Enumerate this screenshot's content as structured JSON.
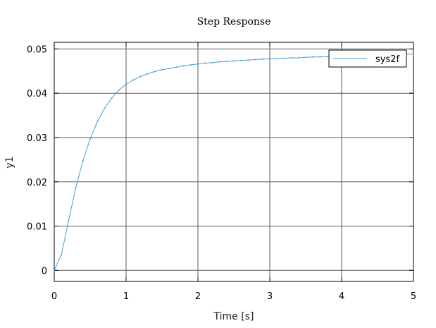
{
  "chart_data": {
    "type": "line",
    "title": "Step Response",
    "xlabel": "Time [s]",
    "ylabel": "y1",
    "xlim": [
      0,
      5
    ],
    "ylim": [
      -0.0025,
      0.0515
    ],
    "xticks": [
      0,
      1,
      2,
      3,
      4,
      5
    ],
    "yticks": [
      0,
      0.01,
      0.02,
      0.03,
      0.04,
      0.05
    ],
    "xtick_labels": [
      "0",
      "1",
      "2",
      "3",
      "4",
      "5"
    ],
    "ytick_labels": [
      "0",
      "0.01",
      "0.02",
      "0.03",
      "0.04",
      "0.05"
    ],
    "grid": true,
    "legend_position": "top-right",
    "series": [
      {
        "name": "sys2f",
        "color": "#4a9fd5",
        "x": [
          0,
          0.1,
          0.2,
          0.3,
          0.4,
          0.5,
          0.6,
          0.7,
          0.8,
          0.9,
          1.0,
          1.1,
          1.2,
          1.3,
          1.4,
          1.5,
          1.6,
          1.7,
          1.8,
          1.9,
          2.0,
          2.1,
          2.2,
          2.3,
          2.4,
          2.5,
          2.6,
          2.7,
          2.8,
          2.9,
          3.0,
          3.1,
          3.2,
          3.3,
          3.4,
          3.5,
          3.6,
          3.7,
          3.8,
          3.9,
          4.0,
          4.1,
          4.2,
          4.3,
          4.4,
          4.5,
          4.6,
          4.7,
          4.8,
          4.9,
          5.0
        ],
        "y": [
          0,
          0.0036,
          0.0112,
          0.0187,
          0.0248,
          0.0297,
          0.0336,
          0.0366,
          0.0389,
          0.0407,
          0.042,
          0.043,
          0.0438,
          0.0444,
          0.0449,
          0.0453,
          0.0456,
          0.0459,
          0.0462,
          0.0464,
          0.0466,
          0.0468,
          0.0469,
          0.0471,
          0.0472,
          0.0473,
          0.0474,
          0.0475,
          0.0476,
          0.0477,
          0.0478,
          0.0478,
          0.0479,
          0.048,
          0.048,
          0.0481,
          0.0482,
          0.0482,
          0.0483,
          0.0483,
          0.0484,
          0.0484,
          0.0485,
          0.0485,
          0.0486,
          0.0486,
          0.0486,
          0.0487,
          0.0487,
          0.0488,
          0.0488
        ]
      }
    ]
  }
}
